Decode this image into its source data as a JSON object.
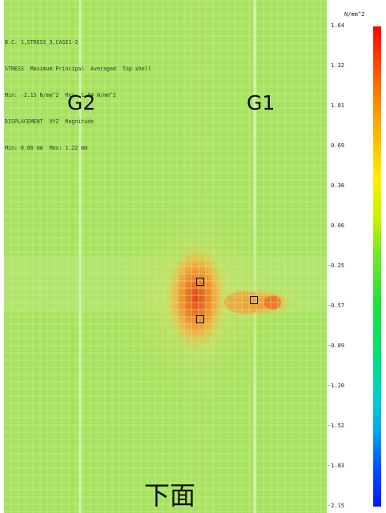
{
  "header": {
    "line1": "B.C. 1,STRESS_3,CASE1-2",
    "line2": "STRESS  Maximum Principal  Averaged  Top shell",
    "line3": "Min: -2.15 N/mm^2  Max: 1.64 N/mm^2",
    "line4": "DISPLACEMENT  XYZ  Magnitude",
    "line5": "Min: 0.00 mm  Max: 1.22 mm"
  },
  "labels": {
    "g2": "G2",
    "g1": "G1",
    "caption": "下面"
  },
  "legend": {
    "unit": "N/mm^2",
    "ticks": [
      "1.64",
      "1.32",
      "1.01",
      "0.69",
      "0.38",
      "0.06",
      "-0.25",
      "-0.57",
      "-0.89",
      "-1.20",
      "-1.52",
      "-1.83",
      "-2.15"
    ],
    "colors": [
      "#ff0000",
      "#ff6a00",
      "#ffb400",
      "#ffee00",
      "#6ee62a",
      "#00e070",
      "#00a8f0",
      "#0018ff"
    ]
  },
  "plot": {
    "background_color": "#a6e25f",
    "hotspot_colors": [
      "#e23a12",
      "#f07a1e",
      "#f5b43a",
      "#d8dc56"
    ]
  }
}
